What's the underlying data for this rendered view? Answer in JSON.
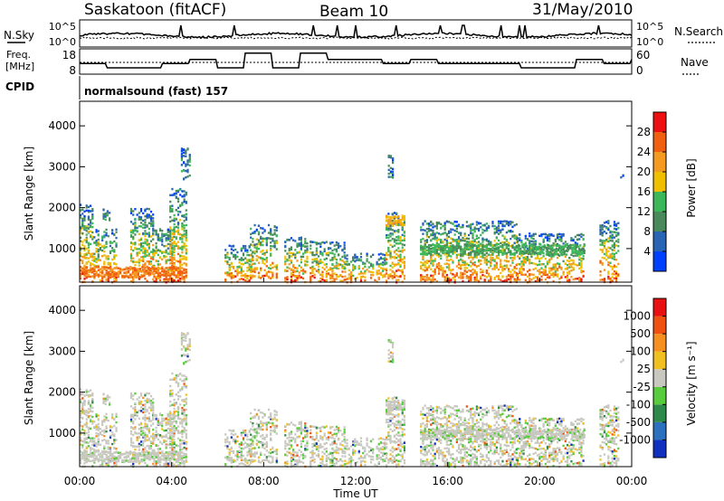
{
  "header": {
    "station": "Saskatoon (fitACF)",
    "beam": "Beam 10",
    "date": "31/May/2010"
  },
  "noise_panel": {
    "left_label": "N.Sky",
    "right_label": "N.Search",
    "left_ticks": [
      "10^5",
      "10^0"
    ],
    "right_ticks": [
      "10^5",
      "10^0"
    ]
  },
  "freq_panel": {
    "left_label_line1": "Freq.",
    "left_label_line2": "[MHz]",
    "right_label": "Nave",
    "left_ticks": [
      "18",
      "8"
    ],
    "right_ticks": [
      "60",
      "0"
    ]
  },
  "cpid": {
    "label": "CPID",
    "program": "normalsound (fast) 157"
  },
  "axes": {
    "xlabel": "Time UT",
    "ylabel": "Slant Range [km]",
    "x_ticks": [
      "00:00",
      "04:00",
      "08:00",
      "12:00",
      "16:00",
      "20:00",
      "00:00"
    ],
    "y_ticks": [
      "1000",
      "2000",
      "3000",
      "4000"
    ]
  },
  "power_bar": {
    "label": "Power [dB]",
    "ticks": [
      "4",
      "8",
      "12",
      "16",
      "20",
      "24",
      "28"
    ],
    "colors": [
      "#0040ff",
      "#2a64b4",
      "#4a8a5a",
      "#3cb85a",
      "#f0c000",
      "#f59a20",
      "#f06010",
      "#ee1010"
    ]
  },
  "velocity_bar": {
    "label": "Velocity [m s⁻¹]",
    "ticks": [
      "1000",
      "500",
      "100",
      "25",
      "-25",
      "-100",
      "-500",
      "-1000"
    ],
    "colors": [
      "#1030c0",
      "#2c70c0",
      "#2e8a4a",
      "#58cc3c",
      "#c8c8c0",
      "#f0c020",
      "#f59020",
      "#f05010",
      "#e81010"
    ]
  },
  "chart_data": {
    "type": "heatmap",
    "x_range_hours": [
      0,
      24
    ],
    "y_range_km": [
      180,
      4600
    ],
    "scatter_blocks": [
      {
        "t": [
          0.0,
          0.6
        ],
        "r": [
          200,
          2100
        ]
      },
      {
        "t": [
          0.6,
          1.6
        ],
        "r": [
          200,
          1500
        ]
      },
      {
        "t": [
          1.0,
          1.3
        ],
        "r": [
          1700,
          2000
        ]
      },
      {
        "t": [
          2.2,
          3.2
        ],
        "r": [
          200,
          2000
        ]
      },
      {
        "t": [
          3.2,
          4.1
        ],
        "r": [
          200,
          1500
        ]
      },
      {
        "t": [
          3.9,
          4.6
        ],
        "r": [
          200,
          2500
        ]
      },
      {
        "t": [
          4.4,
          4.8
        ],
        "r": [
          2700,
          3500
        ]
      },
      {
        "t": [
          6.3,
          7.5
        ],
        "r": [
          200,
          1100
        ]
      },
      {
        "t": [
          7.4,
          8.6
        ],
        "r": [
          300,
          1600
        ]
      },
      {
        "t": [
          8.9,
          9.9
        ],
        "r": [
          200,
          1300
        ]
      },
      {
        "t": [
          10.0,
          11.5
        ],
        "r": [
          200,
          1200
        ]
      },
      {
        "t": [
          11.5,
          13.3
        ],
        "r": [
          200,
          900
        ]
      },
      {
        "t": [
          13.3,
          14.1
        ],
        "r": [
          200,
          1900
        ]
      },
      {
        "t": [
          13.4,
          13.6
        ],
        "r": [
          2700,
          3300
        ]
      },
      {
        "t": [
          14.8,
          19.0
        ],
        "r": [
          200,
          1700
        ]
      },
      {
        "t": [
          19.0,
          21.9
        ],
        "r": [
          200,
          1400
        ]
      },
      {
        "t": [
          22.6,
          23.4
        ],
        "r": [
          200,
          1700
        ]
      },
      {
        "t": [
          23.5,
          23.6
        ],
        "r": [
          2700,
          2900
        ]
      }
    ],
    "bands": [
      {
        "t": [
          14.8,
          21.9
        ],
        "r": 1000,
        "power": 12
      },
      {
        "t": [
          13.3,
          14.1
        ],
        "r": 1700,
        "power": 20
      },
      {
        "t": [
          0.0,
          4.6
        ],
        "r": 450,
        "power": 24
      }
    ]
  }
}
